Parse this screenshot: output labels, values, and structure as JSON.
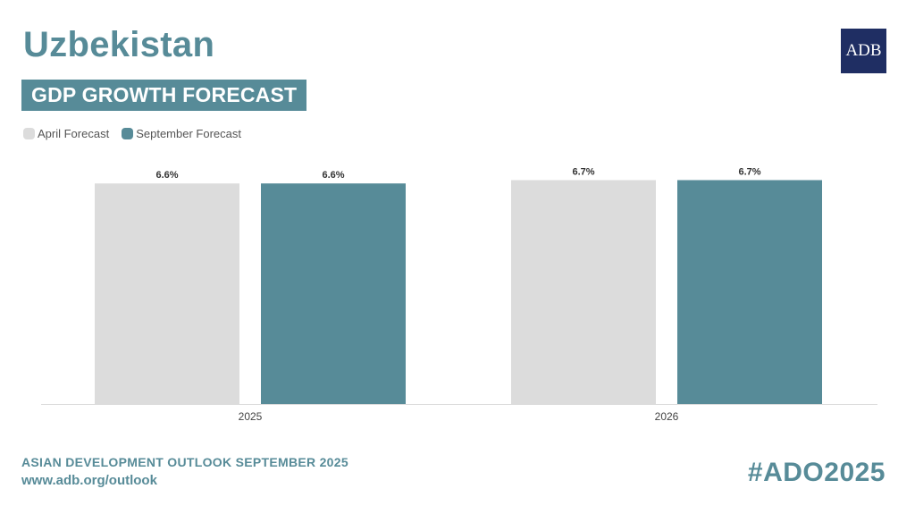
{
  "header": {
    "title": "Uzbekistan",
    "subtitle": "GDP GROWTH FORECAST",
    "logo_text": "ADB"
  },
  "legend": [
    {
      "label": "April Forecast",
      "color": "#dcdcdc"
    },
    {
      "label": "September Forecast",
      "color": "#578b98"
    }
  ],
  "chart_data": {
    "type": "bar",
    "categories": [
      "2025",
      "2026"
    ],
    "series": [
      {
        "name": "April Forecast",
        "values": [
          6.6,
          6.7
        ],
        "labels": [
          "6.6%",
          "6.7%"
        ],
        "color": "#dcdcdc"
      },
      {
        "name": "September Forecast",
        "values": [
          6.6,
          6.7
        ],
        "labels": [
          "6.6%",
          "6.7%"
        ],
        "color": "#578b98"
      }
    ],
    "title": "GDP GROWTH FORECAST",
    "xlabel": "",
    "ylabel": "",
    "ylim": [
      0,
      6.9
    ],
    "grid": false,
    "legend_position": "top-left"
  },
  "footer": {
    "publication": "ASIAN DEVELOPMENT OUTLOOK SEPTEMBER 2025",
    "url": "www.adb.org/outlook",
    "hashtag": "#ADO2025"
  }
}
